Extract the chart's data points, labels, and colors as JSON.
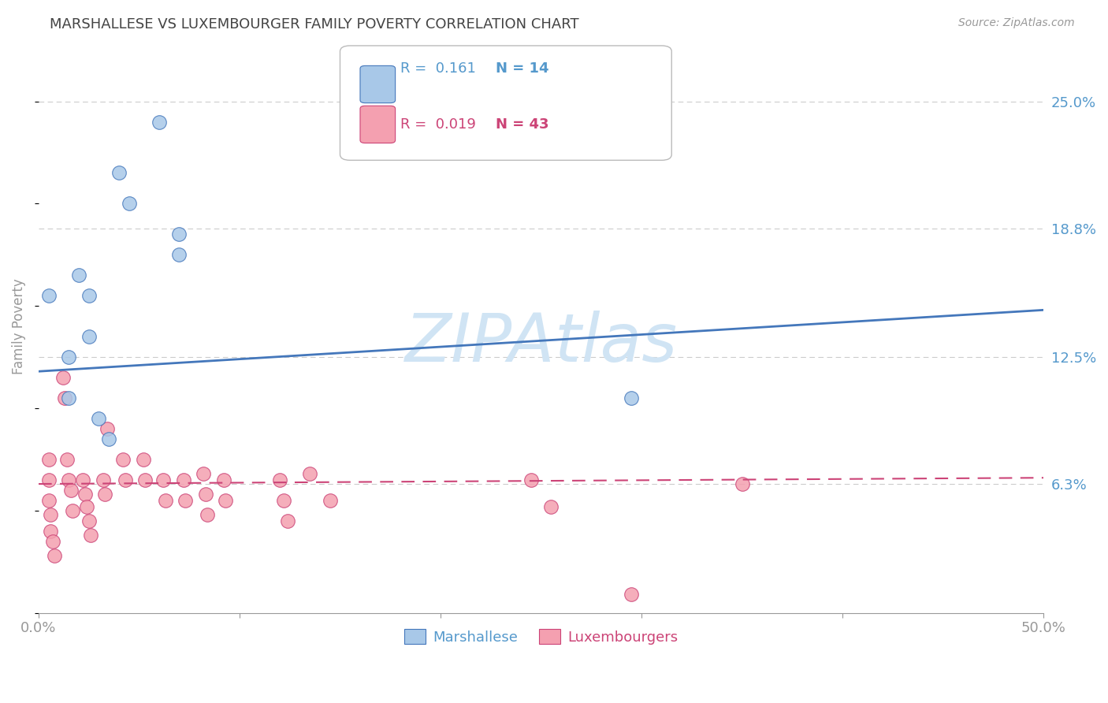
{
  "title": "MARSHALLESE VS LUXEMBOURGER FAMILY POVERTY CORRELATION CHART",
  "source": "Source: ZipAtlas.com",
  "ylabel": "Family Poverty",
  "watermark": "ZIPAtlas",
  "xlim": [
    0.0,
    0.5
  ],
  "ylim": [
    0.0,
    0.28
  ],
  "yticks": [
    0.063,
    0.125,
    0.188,
    0.25
  ],
  "ytick_labels": [
    "6.3%",
    "12.5%",
    "18.8%",
    "25.0%"
  ],
  "xticks": [
    0.0,
    0.1,
    0.2,
    0.3,
    0.4,
    0.5
  ],
  "xtick_labels": [
    "0.0%",
    "",
    "",
    "",
    "",
    "50.0%"
  ],
  "blue_color": "#A8C8E8",
  "pink_color": "#F4A0B0",
  "line_blue": "#4477BB",
  "line_pink": "#CC4477",
  "legend_R_blue": "0.161",
  "legend_N_blue": "14",
  "legend_R_pink": "0.019",
  "legend_N_pink": "43",
  "legend_label_blue": "Marshallese",
  "legend_label_pink": "Luxembourgers",
  "blue_x": [
    0.005,
    0.015,
    0.015,
    0.02,
    0.025,
    0.025,
    0.03,
    0.035,
    0.04,
    0.045,
    0.06,
    0.07,
    0.07,
    0.295
  ],
  "blue_y": [
    0.155,
    0.125,
    0.105,
    0.165,
    0.155,
    0.135,
    0.095,
    0.085,
    0.215,
    0.2,
    0.24,
    0.185,
    0.175,
    0.105
  ],
  "pink_x": [
    0.005,
    0.005,
    0.005,
    0.006,
    0.006,
    0.007,
    0.008,
    0.012,
    0.013,
    0.014,
    0.015,
    0.016,
    0.017,
    0.022,
    0.023,
    0.024,
    0.025,
    0.026,
    0.032,
    0.033,
    0.034,
    0.042,
    0.043,
    0.052,
    0.053,
    0.062,
    0.063,
    0.072,
    0.073,
    0.082,
    0.083,
    0.084,
    0.092,
    0.093,
    0.12,
    0.122,
    0.124,
    0.135,
    0.145,
    0.245,
    0.255,
    0.295,
    0.35
  ],
  "pink_y": [
    0.075,
    0.065,
    0.055,
    0.048,
    0.04,
    0.035,
    0.028,
    0.115,
    0.105,
    0.075,
    0.065,
    0.06,
    0.05,
    0.065,
    0.058,
    0.052,
    0.045,
    0.038,
    0.065,
    0.058,
    0.09,
    0.075,
    0.065,
    0.075,
    0.065,
    0.065,
    0.055,
    0.065,
    0.055,
    0.068,
    0.058,
    0.048,
    0.065,
    0.055,
    0.065,
    0.055,
    0.045,
    0.068,
    0.055,
    0.065,
    0.052,
    0.009,
    0.063
  ],
  "blue_trend_y_start": 0.118,
  "blue_trend_y_end": 0.148,
  "pink_trend_y_start": 0.063,
  "pink_trend_y_end": 0.066,
  "bg_color": "#FFFFFF",
  "grid_color": "#CCCCCC",
  "axis_color": "#999999",
  "title_color": "#444444",
  "tick_label_color_blue": "#5599CC",
  "source_color": "#999999",
  "watermark_color": "#D0E4F4"
}
